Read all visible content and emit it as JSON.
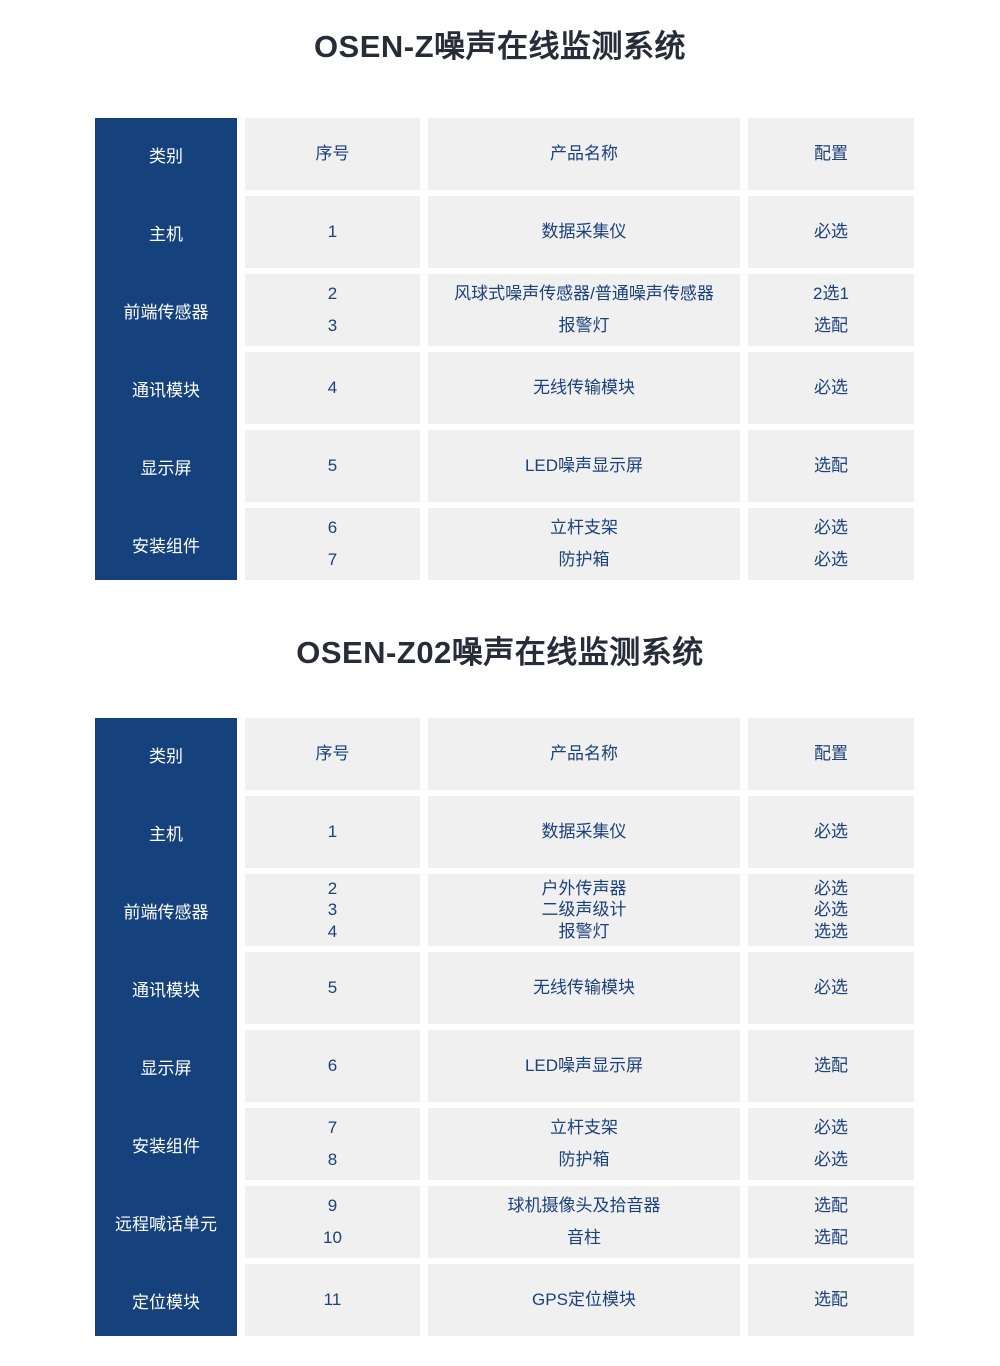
{
  "colors": {
    "sidebar_bg": "#15427c",
    "cell_bg": "#f0f0f0",
    "cell_text": "#1b4179",
    "title_text": "#272d38"
  },
  "tables": [
    {
      "title": "OSEN-Z噪声在线监测系统",
      "headers": {
        "category": "类别",
        "index": "序号",
        "product": "产品名称",
        "config": "配置"
      },
      "rows": [
        {
          "category": "主机",
          "indices": [
            "1"
          ],
          "products": [
            "数据采集仪"
          ],
          "configs": [
            "必选"
          ]
        },
        {
          "category": "前端传感器",
          "indices": [
            "2",
            "3"
          ],
          "products": [
            "风球式噪声传感器/普通噪声传感器",
            "报警灯"
          ],
          "configs": [
            "2选1",
            "选配"
          ]
        },
        {
          "category": "通讯模块",
          "indices": [
            "4"
          ],
          "products": [
            "无线传输模块"
          ],
          "configs": [
            "必选"
          ]
        },
        {
          "category": "显示屏",
          "indices": [
            "5"
          ],
          "products": [
            "LED噪声显示屏"
          ],
          "configs": [
            "选配"
          ]
        },
        {
          "category": "安装组件",
          "indices": [
            "6",
            "7"
          ],
          "products": [
            "立杆支架",
            "防护箱"
          ],
          "configs": [
            "必选",
            "必选"
          ]
        }
      ]
    },
    {
      "title": "OSEN-Z02噪声在线监测系统",
      "headers": {
        "category": "类别",
        "index": "序号",
        "product": "产品名称",
        "config": "配置"
      },
      "rows": [
        {
          "category": "主机",
          "indices": [
            "1"
          ],
          "products": [
            "数据采集仪"
          ],
          "configs": [
            "必选"
          ]
        },
        {
          "category": "前端传感器",
          "indices": [
            "2",
            "3",
            "4"
          ],
          "products": [
            "户外传声器",
            "二级声级计",
            "报警灯"
          ],
          "configs": [
            "必选",
            "必选",
            "选选"
          ]
        },
        {
          "category": "通讯模块",
          "indices": [
            "5"
          ],
          "products": [
            "无线传输模块"
          ],
          "configs": [
            "必选"
          ]
        },
        {
          "category": "显示屏",
          "indices": [
            "6"
          ],
          "products": [
            "LED噪声显示屏"
          ],
          "configs": [
            "选配"
          ]
        },
        {
          "category": "安装组件",
          "indices": [
            "7",
            "8"
          ],
          "products": [
            "立杆支架",
            "防护箱"
          ],
          "configs": [
            "必选",
            "必选"
          ]
        },
        {
          "category": "远程喊话单元",
          "indices": [
            "9",
            "10"
          ],
          "products": [
            "球机摄像头及拾音器",
            "音柱"
          ],
          "configs": [
            "选配",
            "选配"
          ]
        },
        {
          "category": "定位模块",
          "indices": [
            "11"
          ],
          "products": [
            "GPS定位模块"
          ],
          "configs": [
            "选配"
          ]
        }
      ]
    }
  ]
}
